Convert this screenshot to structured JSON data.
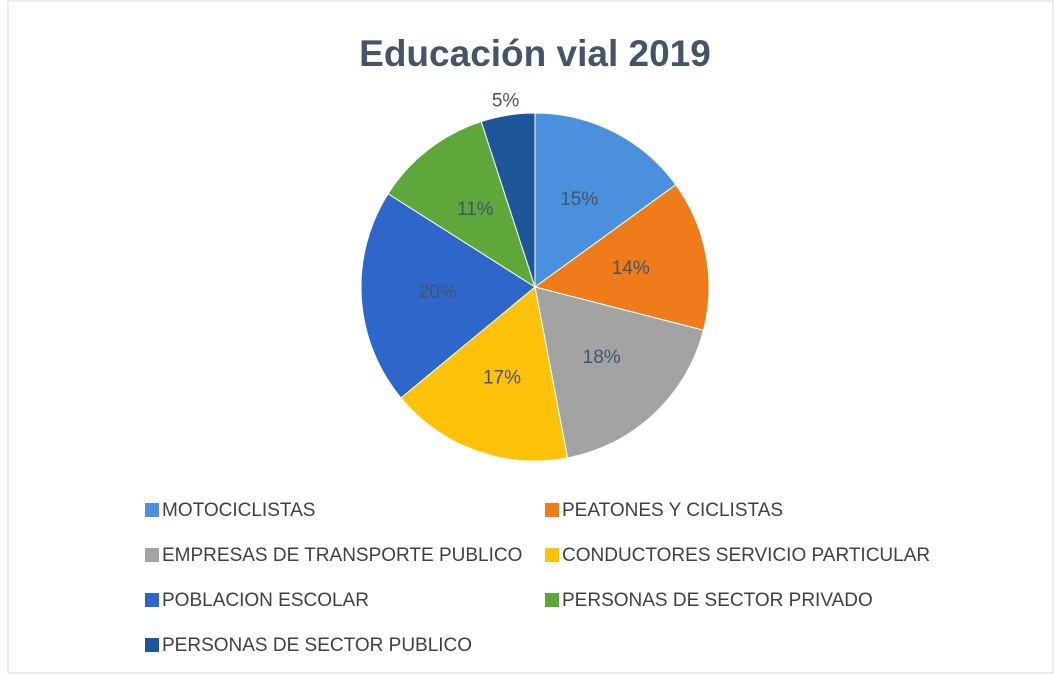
{
  "chart_data": {
    "type": "pie",
    "title": "Educación vial 2019",
    "categories": [
      "MOTOCICLISTAS",
      "PEATONES Y CICLISTAS",
      "EMPRESAS DE TRANSPORTE PUBLICO",
      "CONDUCTORES SERVICIO PARTICULAR",
      "POBLACION ESCOLAR",
      "PERSONAS DE SECTOR PRIVADO",
      "PERSONAS DE SECTOR PUBLICO"
    ],
    "values": [
      15,
      14,
      18,
      17,
      20,
      11,
      5
    ],
    "value_labels": [
      "15%",
      "14%",
      "18%",
      "17%",
      "20%",
      "11%",
      "5%"
    ],
    "colors": [
      "#4a90dc",
      "#f07b1b",
      "#a3a3a3",
      "#ffc20a",
      "#2f66c9",
      "#5ea83b",
      "#1d5699"
    ],
    "legend": "bottom"
  }
}
